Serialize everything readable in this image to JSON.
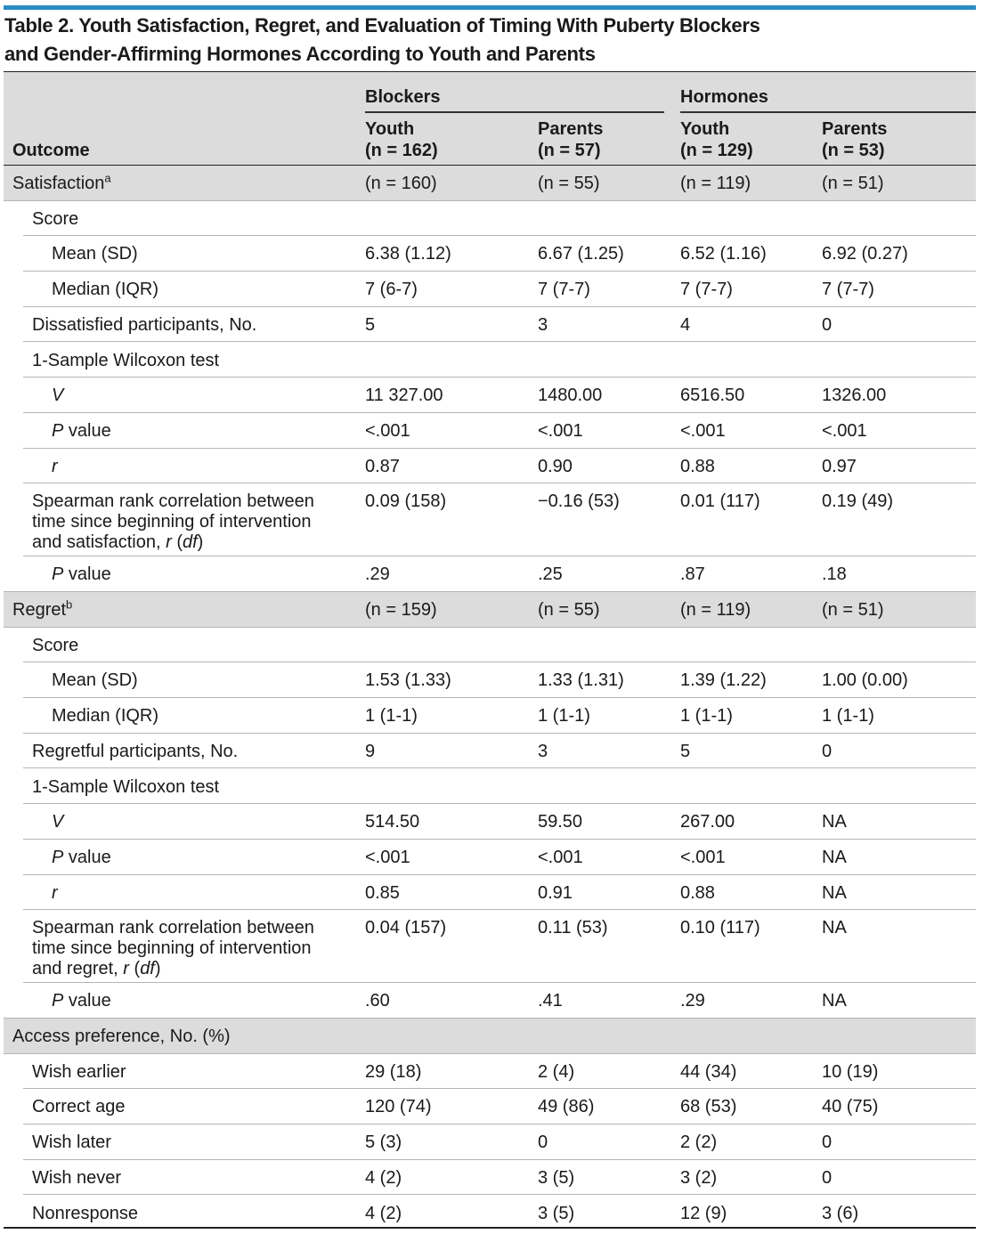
{
  "title_line1": "Table 2. Youth Satisfaction, Regret, and Evaluation of Timing With Puberty Blockers",
  "title_line2": "and Gender-Affirming Hormones According to Youth and Parents",
  "header": {
    "outcome": "Outcome",
    "group_blockers": "Blockers",
    "group_hormones": "Hormones",
    "cols": [
      {
        "who": "Youth",
        "n": "(n = 162)"
      },
      {
        "who": "Parents",
        "n": "(n = 57)"
      },
      {
        "who": "Youth",
        "n": "(n = 129)"
      },
      {
        "who": "Parents",
        "n": "(n = 53)"
      }
    ]
  },
  "rows": [
    {
      "label": "Satisfaction",
      "sup": "a",
      "indent": 0,
      "values": [
        "(n = 160)",
        "(n = 55)",
        "(n = 119)",
        "(n = 51)"
      ],
      "band": true
    },
    {
      "label": "Score",
      "indent": 1,
      "values": [
        "",
        "",
        "",
        ""
      ],
      "band": false
    },
    {
      "label": "Mean (SD)",
      "indent": 2,
      "values": [
        "6.38 (1.12)",
        "6.67 (1.25)",
        "6.52 (1.16)",
        "6.92 (0.27)"
      ],
      "band": false
    },
    {
      "label": "Median (IQR)",
      "indent": 2,
      "values": [
        "7 (6-7)",
        "7 (7-7)",
        "7 (7-7)",
        "7 (7-7)"
      ],
      "band": false
    },
    {
      "label": "Dissatisfied participants, No.",
      "indent": 1,
      "values": [
        "5",
        "3",
        "4",
        "0"
      ],
      "band": false
    },
    {
      "label": "1-Sample Wilcoxon test",
      "indent": 1,
      "values": [
        "",
        "",
        "",
        ""
      ],
      "band": false
    },
    {
      "label": "V",
      "italic": true,
      "indent": 2,
      "values": [
        "11 327.00",
        "1480.00",
        "6516.50",
        "1326.00"
      ],
      "band": false
    },
    {
      "label": "P value",
      "pitalic": true,
      "indent": 2,
      "values": [
        "<.001",
        "<.001",
        "<.001",
        "<.001"
      ],
      "band": false
    },
    {
      "label": "r",
      "italic": true,
      "indent": 2,
      "values": [
        "0.87",
        "0.90",
        "0.88",
        "0.97"
      ],
      "band": false
    },
    {
      "label": "Spearman rank correlation between time since beginning of intervention and satisfaction, r (df)",
      "spearman": true,
      "indent": 1,
      "values": [
        "0.09 (158)",
        "−0.16 (53)",
        "0.01 (117)",
        "0.19 (49)"
      ],
      "band": false
    },
    {
      "label": "P value",
      "pitalic": true,
      "indent": 2,
      "values": [
        ".29",
        ".25",
        ".87",
        ".18"
      ],
      "band": false
    },
    {
      "label": "Regret",
      "sup": "b",
      "indent": 0,
      "values": [
        "(n = 159)",
        "(n = 55)",
        "(n = 119)",
        "(n = 51)"
      ],
      "band": true
    },
    {
      "label": "Score",
      "indent": 1,
      "values": [
        "",
        "",
        "",
        ""
      ],
      "band": false
    },
    {
      "label": "Mean (SD)",
      "indent": 2,
      "values": [
        "1.53 (1.33)",
        "1.33 (1.31)",
        "1.39 (1.22)",
        "1.00 (0.00)"
      ],
      "band": false
    },
    {
      "label": "Median (IQR)",
      "indent": 2,
      "values": [
        "1 (1-1)",
        "1 (1-1)",
        "1 (1-1)",
        "1 (1-1)"
      ],
      "band": false
    },
    {
      "label": "Regretful participants, No.",
      "indent": 1,
      "values": [
        "9",
        "3",
        "5",
        "0"
      ],
      "band": false
    },
    {
      "label": "1-Sample Wilcoxon test",
      "indent": 1,
      "values": [
        "",
        "",
        "",
        ""
      ],
      "band": false
    },
    {
      "label": "V",
      "italic": true,
      "indent": 2,
      "values": [
        "514.50",
        "59.50",
        "267.00",
        "NA"
      ],
      "band": false
    },
    {
      "label": "P value",
      "pitalic": true,
      "indent": 2,
      "values": [
        "<.001",
        "<.001",
        "<.001",
        "NA"
      ],
      "band": false
    },
    {
      "label": "r",
      "italic": true,
      "indent": 2,
      "values": [
        "0.85",
        "0.91",
        "0.88",
        "NA"
      ],
      "band": false
    },
    {
      "label": "Spearman rank correlation between time since beginning of intervention and regret, r (df)",
      "spearman": true,
      "indent": 1,
      "values": [
        "0.04 (157)",
        "0.11 (53)",
        "0.10 (117)",
        "NA"
      ],
      "band": false
    },
    {
      "label": "P value",
      "pitalic": true,
      "indent": 2,
      "values": [
        ".60",
        ".41",
        ".29",
        "NA"
      ],
      "band": false
    },
    {
      "label": "Access preference, No. (%)",
      "indent": 0,
      "values": [
        "",
        "",
        "",
        ""
      ],
      "band": true
    },
    {
      "label": "Wish earlier",
      "indent": 1,
      "values": [
        "29 (18)",
        "2 (4)",
        "44 (34)",
        "10 (19)"
      ],
      "band": false
    },
    {
      "label": "Correct age",
      "indent": 1,
      "values": [
        "120 (74)",
        "49 (86)",
        "68 (53)",
        "40 (75)"
      ],
      "band": false
    },
    {
      "label": "Wish later",
      "indent": 1,
      "values": [
        "5 (3)",
        "0",
        "2 (2)",
        "0"
      ],
      "band": false
    },
    {
      "label": "Wish never",
      "indent": 1,
      "values": [
        "4 (2)",
        "3 (5)",
        "3 (2)",
        "0"
      ],
      "band": false
    },
    {
      "label": "Nonresponse",
      "indent": 1,
      "values": [
        "4 (2)",
        "3 (5)",
        "12 (9)",
        "3 (6)"
      ],
      "band": false
    }
  ]
}
